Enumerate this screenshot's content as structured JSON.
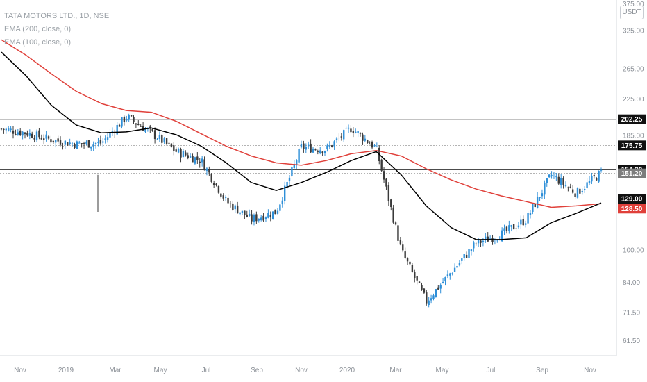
{
  "header": {
    "symbol_line": "TATA MOTORS LTD., 1D, NSE",
    "ema200_label": "EMA (200, close, 0)",
    "ema100_label": "EMA (100, close, 0)",
    "currency_badge": "USDT"
  },
  "colors": {
    "up": "#2e8fd8",
    "down": "#3a3a3a",
    "ema200": "#e0403a",
    "ema100": "#000000",
    "level": "#111111",
    "dotted": "#9a9a9a",
    "tag_dark": "#111111",
    "tag_gray": "#7d7d7d",
    "tag_red": "#e0403a"
  },
  "chart_data": {
    "type": "candlestick",
    "y_scale": "log",
    "y_ticks": [
      "375.00",
      "325.00",
      "265.00",
      "225.00",
      "185.00",
      "100.00",
      "84.00",
      "71.50",
      "61.50"
    ],
    "x_ticks": [
      "Nov",
      "2019",
      "Mar",
      "May",
      "Jul",
      "Sep",
      "Nov",
      "2020",
      "Mar",
      "May",
      "Jul",
      "Sep",
      "Nov"
    ],
    "price_tags": [
      {
        "value": "202.25",
        "style": "dark"
      },
      {
        "value": "175.75",
        "style": "dark"
      },
      {
        "value": "154.30",
        "style": "dark"
      },
      {
        "value": "151.20",
        "style": "gray"
      },
      {
        "value": "129.00",
        "style": "dark"
      },
      {
        "value": "128.50",
        "style": "red"
      }
    ],
    "horizontal_levels": [
      {
        "value": 202.25,
        "style": "solid"
      },
      {
        "value": 175.75,
        "style": "dotted"
      },
      {
        "value": 154.3,
        "style": "solid"
      },
      {
        "value": 151.2,
        "style": "dotted"
      }
    ],
    "price_path": [
      [
        "Nov",
        192
      ],
      [
        "Dec",
        188
      ],
      [
        "2019",
        181
      ],
      [
        "Feb",
        177
      ],
      [
        "Mar",
        178
      ],
      [
        "Apr",
        205
      ],
      [
        "May",
        188
      ],
      [
        "Jun",
        170
      ],
      [
        "Jul",
        162
      ],
      [
        "Aug",
        130
      ],
      [
        "Sep",
        118
      ],
      [
        "Oct",
        123
      ],
      [
        "Nov",
        174
      ],
      [
        "Dec",
        172
      ],
      [
        "2020",
        193
      ],
      [
        "Feb",
        173
      ],
      [
        "Mar",
        100
      ],
      [
        "Apr",
        76
      ],
      [
        "May",
        89
      ],
      [
        "Jun",
        104
      ],
      [
        "Jul",
        109
      ],
      [
        "Aug",
        118
      ],
      [
        "Sep",
        150
      ],
      [
        "Oct",
        136
      ],
      [
        "Nov",
        152
      ]
    ],
    "series": [
      {
        "name": "EMA (200, close, 0)",
        "values": [
          310,
          285,
          258,
          235,
          220,
          212,
          210,
          200,
          187,
          175,
          166,
          160,
          158,
          162,
          168,
          171,
          166,
          155,
          146,
          139,
          134,
          130,
          126,
          127,
          128.5
        ]
      },
      {
        "name": "EMA (100, close, 0)",
        "values": [
          290,
          255,
          218,
          196,
          188,
          189,
          193,
          186,
          175,
          160,
          144,
          138,
          144,
          152,
          162,
          170,
          150,
          127,
          113,
          106,
          106,
          107,
          116,
          122,
          129
        ]
      }
    ]
  }
}
